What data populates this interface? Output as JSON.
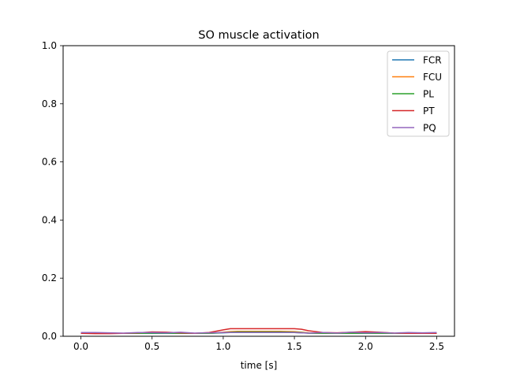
{
  "chart_data": {
    "type": "line",
    "title": "SO muscle activation",
    "xlabel": "time [s]",
    "ylabel": "",
    "xlim": [
      -0.125,
      2.625
    ],
    "ylim": [
      0.0,
      1.0
    ],
    "xticks": [
      0.0,
      0.5,
      1.0,
      1.5,
      2.0,
      2.5
    ],
    "xtick_labels": [
      "0.0",
      "0.5",
      "1.0",
      "1.5",
      "2.0",
      "2.5"
    ],
    "yticks": [
      0.0,
      0.2,
      0.4,
      0.6,
      0.8,
      1.0
    ],
    "ytick_labels": [
      "0.0",
      "0.2",
      "0.4",
      "0.6",
      "0.8",
      "1.0"
    ],
    "grid": false,
    "legend_position": "top-right",
    "x": [
      0.0,
      0.1,
      0.2,
      0.3,
      0.4,
      0.5,
      0.6,
      0.7,
      0.8,
      0.9,
      1.0,
      1.05,
      1.1,
      1.2,
      1.3,
      1.4,
      1.5,
      1.55,
      1.6,
      1.7,
      1.8,
      1.9,
      2.0,
      2.1,
      2.2,
      2.3,
      2.4,
      2.5
    ],
    "series": [
      {
        "name": "FCR",
        "color": "#1f77b4",
        "values": [
          0.01,
          0.01,
          0.01,
          0.01,
          0.01,
          0.01,
          0.01,
          0.01,
          0.01,
          0.01,
          0.012,
          0.013,
          0.013,
          0.013,
          0.013,
          0.013,
          0.013,
          0.012,
          0.011,
          0.01,
          0.01,
          0.01,
          0.01,
          0.01,
          0.01,
          0.01,
          0.01,
          0.01
        ]
      },
      {
        "name": "FCU",
        "color": "#ff7f0e",
        "values": [
          0.01,
          0.01,
          0.01,
          0.01,
          0.011,
          0.012,
          0.012,
          0.011,
          0.01,
          0.01,
          0.014,
          0.016,
          0.017,
          0.017,
          0.017,
          0.017,
          0.016,
          0.014,
          0.012,
          0.01,
          0.01,
          0.011,
          0.012,
          0.011,
          0.01,
          0.01,
          0.01,
          0.01
        ]
      },
      {
        "name": "PL",
        "color": "#2ca02c",
        "values": [
          0.01,
          0.01,
          0.01,
          0.01,
          0.01,
          0.011,
          0.011,
          0.01,
          0.01,
          0.01,
          0.013,
          0.014,
          0.015,
          0.015,
          0.015,
          0.015,
          0.014,
          0.013,
          0.011,
          0.01,
          0.01,
          0.01,
          0.011,
          0.01,
          0.01,
          0.01,
          0.01,
          0.01
        ]
      },
      {
        "name": "PT",
        "color": "#d62728",
        "values": [
          0.01,
          0.009,
          0.009,
          0.01,
          0.012,
          0.015,
          0.014,
          0.012,
          0.01,
          0.013,
          0.022,
          0.026,
          0.026,
          0.026,
          0.026,
          0.026,
          0.026,
          0.024,
          0.019,
          0.013,
          0.012,
          0.014,
          0.016,
          0.014,
          0.011,
          0.01,
          0.01,
          0.01
        ]
      },
      {
        "name": "PQ",
        "color": "#9467bd",
        "values": [
          0.013,
          0.013,
          0.012,
          0.011,
          0.013,
          0.013,
          0.012,
          0.014,
          0.011,
          0.012,
          0.013,
          0.013,
          0.013,
          0.013,
          0.013,
          0.013,
          0.013,
          0.012,
          0.011,
          0.013,
          0.011,
          0.014,
          0.012,
          0.013,
          0.011,
          0.013,
          0.012,
          0.013
        ]
      }
    ]
  }
}
